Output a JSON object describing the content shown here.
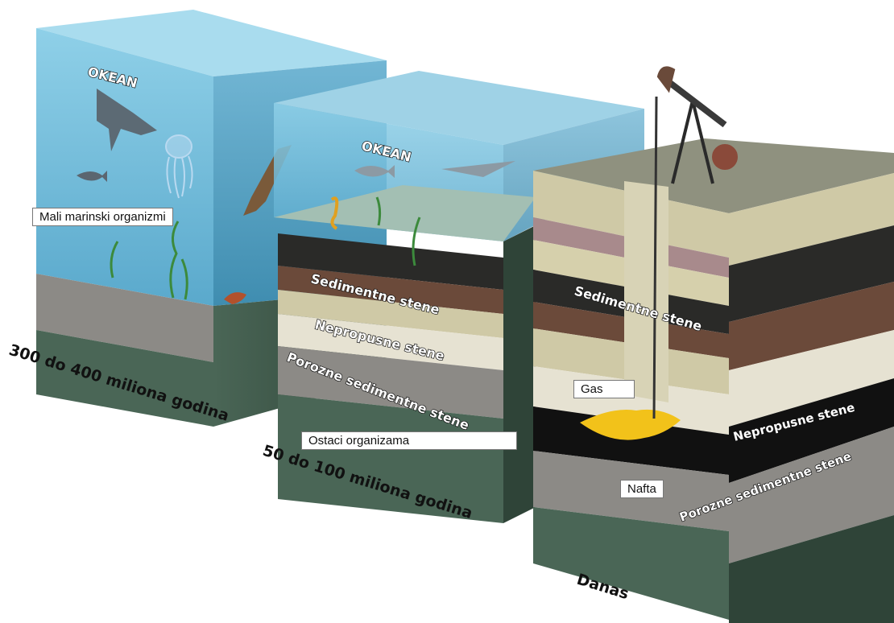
{
  "labels": {
    "ocean_1": "OKEAN",
    "ocean_2": "OKEAN",
    "marine_organisms": "Mali marinski organizmi",
    "sedimentary_1": "Sedimentne stene",
    "impermeable_1": "Nepropusne stene",
    "porous_1": "Porozne sedimentne stene",
    "remains": "Ostaci organizama",
    "sedimentary_2": "Sedimentne stene",
    "gas": "Gas",
    "impermeable_2": "Nepropusne stene",
    "oil": "Nafta",
    "porous_2": "Porozne sedimentne stene"
  },
  "eras": {
    "era_1": "300 do 400 miliona godina",
    "era_2": "50 do 100 miliona godina",
    "era_3": "Danas"
  },
  "colors": {
    "water": "#7fc4df",
    "water_dark": "#4f9fc2",
    "seabed": "#8a8a86",
    "green_rock": "#3f5b4c",
    "sediment_light": "#cfc9a6",
    "sediment_brown": "#6b4a3a",
    "sediment_dark": "#2a2a28",
    "sediment_pink": "#a88a8c",
    "brick": "#e6e2d2",
    "oil_black": "#111111",
    "gas_yellow": "#f2c21a",
    "ground_top": "#8f917f"
  }
}
